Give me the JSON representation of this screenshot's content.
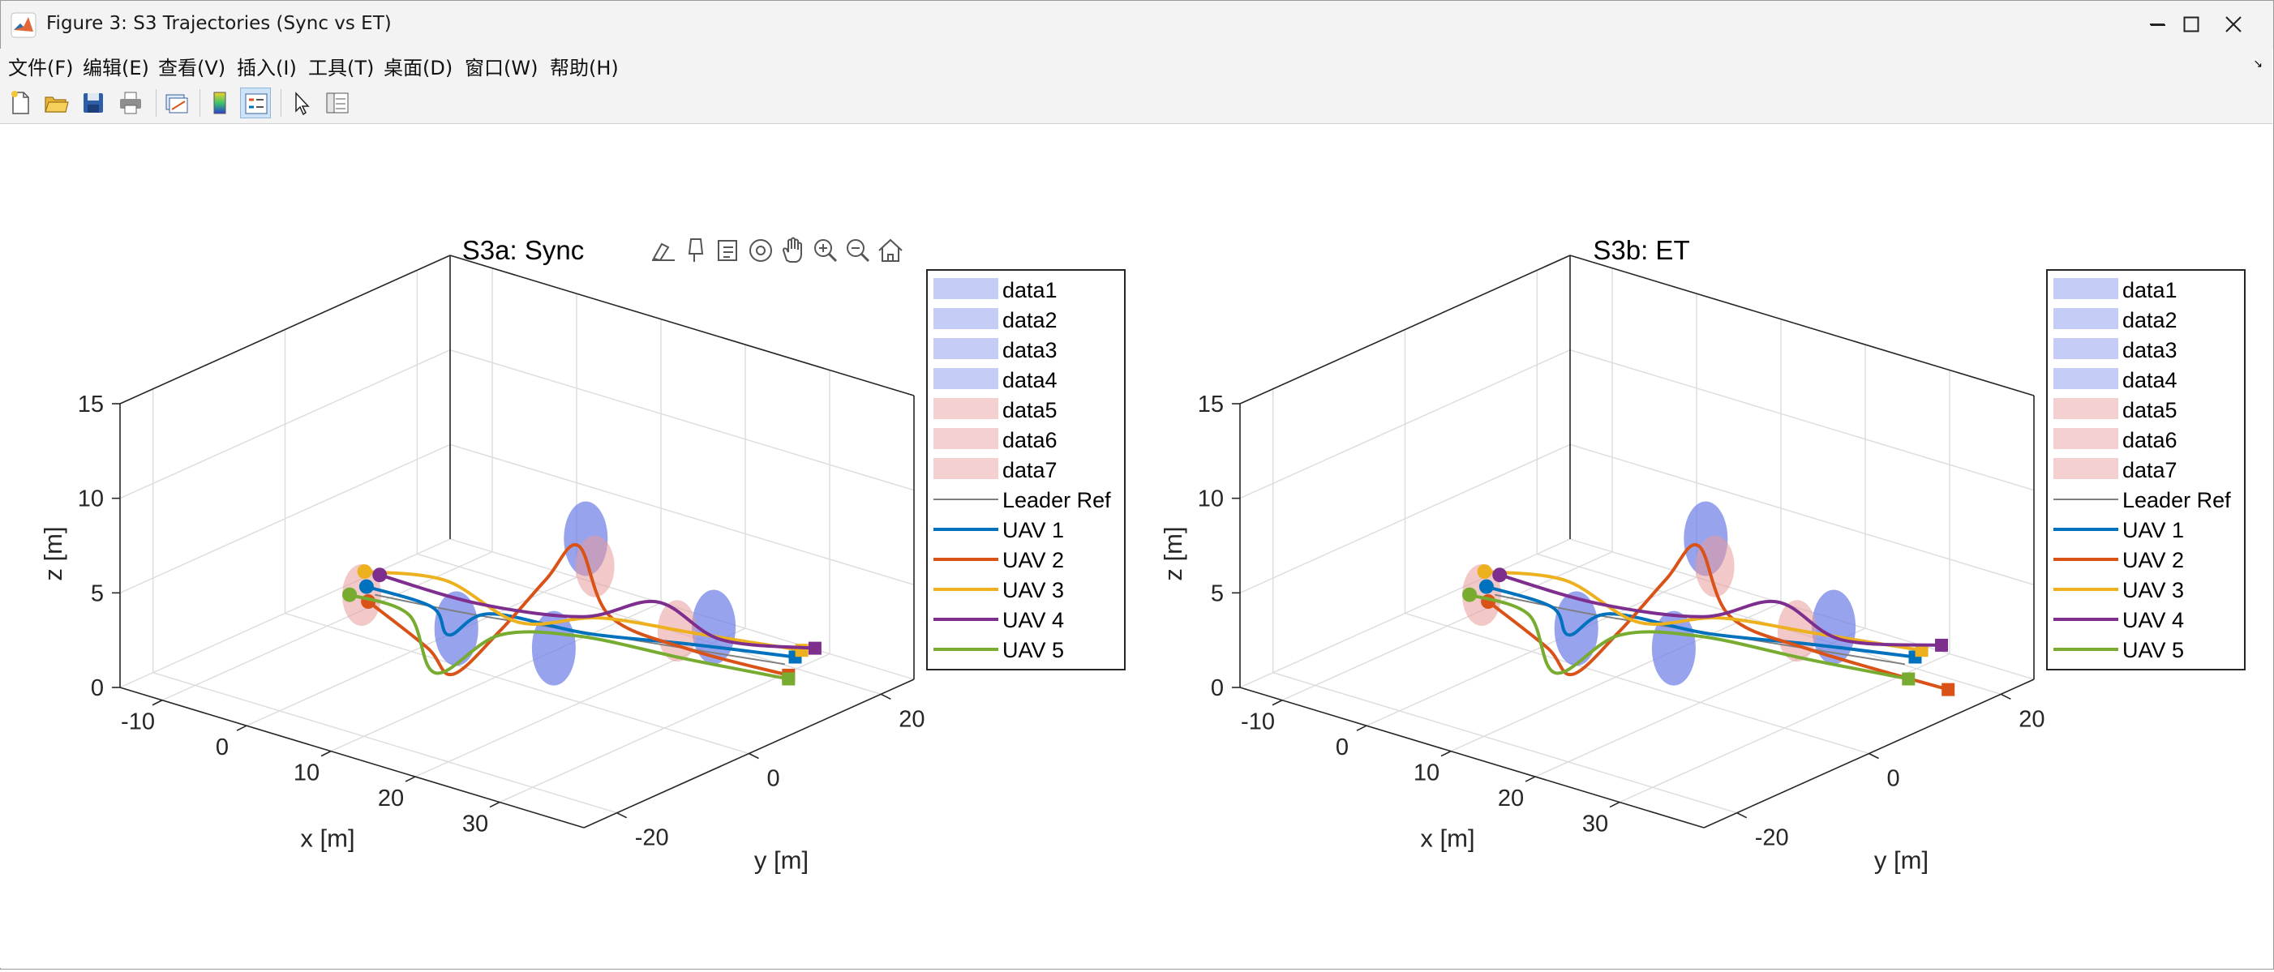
{
  "window": {
    "title": "Figure 3: S3 Trajectories (Sync vs ET)",
    "controls": [
      "minimize",
      "maximize",
      "close"
    ]
  },
  "menu": [
    "文件(F)",
    "编辑(E)",
    "查看(V)",
    "插入(I)",
    "工具(T)",
    "桌面(D)",
    "窗口(W)",
    "帮助(H)"
  ],
  "toolbar": {
    "icons": [
      "new-figure-icon",
      "open-file-icon",
      "save-icon",
      "print-icon",
      "link-plot-icon",
      "colorbar-icon",
      "legend-icon",
      "edit-plot-icon",
      "property-inspector-icon"
    ]
  },
  "axes_toolbar": {
    "icons": [
      "brush-icon",
      "data-tips-icon",
      "export-icon",
      "rotate-3d-icon",
      "pan-icon",
      "zoom-in-icon",
      "zoom-out-icon",
      "restore-view-icon"
    ]
  },
  "colors": {
    "leader_ref": "#7f7f7f",
    "uav1": "#0072BD",
    "uav2": "#D95319",
    "uav3": "#EDB120",
    "uav4": "#7E2F8E",
    "uav5": "#77AC30",
    "obstacle_blue": "#7080e8",
    "obstacle_red": "#e89a9a"
  },
  "legend": {
    "entries": [
      {
        "label": "data1",
        "kind": "patch",
        "color": "#c5ccf6"
      },
      {
        "label": "data2",
        "kind": "patch",
        "color": "#c5ccf6"
      },
      {
        "label": "data3",
        "kind": "patch",
        "color": "#c5ccf6"
      },
      {
        "label": "data4",
        "kind": "patch",
        "color": "#c5ccf6"
      },
      {
        "label": "data5",
        "kind": "patch",
        "color": "#f5d0d0"
      },
      {
        "label": "data6",
        "kind": "patch",
        "color": "#f5d0d0"
      },
      {
        "label": "data7",
        "kind": "patch",
        "color": "#f5d0d0"
      },
      {
        "label": "Leader Ref",
        "kind": "line",
        "color": "#7f7f7f"
      },
      {
        "label": "UAV 1",
        "kind": "line",
        "color": "#0072BD"
      },
      {
        "label": "UAV 2",
        "kind": "line",
        "color": "#D95319"
      },
      {
        "label": "UAV 3",
        "kind": "line",
        "color": "#EDB120"
      },
      {
        "label": "UAV 4",
        "kind": "line",
        "color": "#7E2F8E"
      },
      {
        "label": "UAV 5",
        "kind": "line",
        "color": "#77AC30"
      }
    ]
  },
  "chart_data": [
    {
      "type": "line",
      "projection": "3d",
      "title": "S3a: Sync",
      "xlabel": "x [m]",
      "ylabel": "y [m]",
      "zlabel": "z [m]",
      "xlim": [
        -15,
        40
      ],
      "ylim": [
        -25,
        25
      ],
      "zlim": [
        0,
        15
      ],
      "xticks": [
        -10,
        0,
        10,
        20,
        30
      ],
      "yticks": [
        -20,
        0,
        20
      ],
      "zticks": [
        0,
        5,
        10,
        15
      ],
      "grid": true,
      "legend_position": "right",
      "obstacles": [
        {
          "name": "data1",
          "center": [
            10,
            -6
          ],
          "color": "blue"
        },
        {
          "name": "data2",
          "center": [
            20,
            -4
          ],
          "color": "blue"
        },
        {
          "name": "data3",
          "center": [
            28,
            10
          ],
          "color": "blue"
        },
        {
          "name": "data4",
          "center": [
            5,
            20
          ],
          "color": "blue"
        },
        {
          "name": "data5",
          "center": [
            -2,
            -5
          ],
          "color": "red"
        },
        {
          "name": "data6",
          "center": [
            26,
            7
          ],
          "color": "red"
        },
        {
          "name": "data7",
          "center": [
            10,
            15
          ],
          "color": "red"
        }
      ],
      "series": [
        {
          "name": "Leader Ref",
          "points": [
            [
              -2,
              -3,
              3.2
            ],
            [
              8,
              -1,
              3.2
            ],
            [
              18,
              2,
              3.2
            ],
            [
              28,
              5,
              3.2
            ],
            [
              38,
              8,
              3.2
            ]
          ]
        },
        {
          "name": "UAV 1",
          "points": [
            [
              -3,
              -3,
              3.5
            ],
            [
              4,
              -2,
              3.2
            ],
            [
              6,
              -2,
              2
            ],
            [
              10,
              -1,
              3.5
            ],
            [
              20,
              1,
              3.5
            ],
            [
              30,
              4,
              3.8
            ],
            [
              40,
              7,
              4
            ]
          ]
        },
        {
          "name": "UAV 2",
          "points": [
            [
              -2,
              -4,
              3
            ],
            [
              5,
              -4,
              1.5
            ],
            [
              8,
              -4,
              0.5
            ],
            [
              12,
              -2,
              3
            ],
            [
              16,
              0,
              6
            ],
            [
              19,
              1,
              8
            ],
            [
              22,
              2,
              4.5
            ],
            [
              30,
              4,
              3.5
            ],
            [
              40,
              6,
              3.2
            ]
          ]
        },
        {
          "name": "UAV 3",
          "points": [
            [
              -4,
              -2,
              4
            ],
            [
              4,
              0,
              4.3
            ],
            [
              12,
              1,
              3
            ],
            [
              20,
              3,
              4
            ],
            [
              30,
              5,
              4.2
            ],
            [
              40,
              8,
              4.2
            ]
          ]
        },
        {
          "name": "UAV 4",
          "points": [
            [
              -3,
              -1,
              3.8
            ],
            [
              8,
              0,
              3.6
            ],
            [
              18,
              3,
              3.8
            ],
            [
              26,
              4,
              5.5
            ],
            [
              32,
              6,
              4
            ],
            [
              40,
              10,
              4
            ]
          ]
        },
        {
          "name": "UAV 5",
          "points": [
            [
              -5,
              -3,
              2.8
            ],
            [
              2,
              -3,
              2.7
            ],
            [
              6,
              -4,
              0.3
            ],
            [
              12,
              -2,
              2.8
            ],
            [
              20,
              0,
              3.5
            ],
            [
              30,
              3,
              3.2
            ],
            [
              40,
              6,
              3
            ]
          ]
        }
      ]
    },
    {
      "type": "line",
      "projection": "3d",
      "title": "S3b: ET",
      "xlabel": "x [m]",
      "ylabel": "y [m]",
      "zlabel": "z [m]",
      "xlim": [
        -15,
        40
      ],
      "ylim": [
        -25,
        25
      ],
      "zlim": [
        0,
        15
      ],
      "xticks": [
        -10,
        0,
        10,
        20,
        30
      ],
      "yticks": [
        -20,
        0,
        20
      ],
      "zticks": [
        0,
        5,
        10,
        15
      ],
      "grid": true,
      "legend_position": "right",
      "obstacles": [
        {
          "name": "data1",
          "center": [
            10,
            -6
          ],
          "color": "blue"
        },
        {
          "name": "data2",
          "center": [
            20,
            -4
          ],
          "color": "blue"
        },
        {
          "name": "data3",
          "center": [
            28,
            10
          ],
          "color": "blue"
        },
        {
          "name": "data4",
          "center": [
            5,
            20
          ],
          "color": "blue"
        },
        {
          "name": "data5",
          "center": [
            -2,
            -5
          ],
          "color": "red"
        },
        {
          "name": "data6",
          "center": [
            26,
            7
          ],
          "color": "red"
        },
        {
          "name": "data7",
          "center": [
            10,
            15
          ],
          "color": "red"
        }
      ],
      "series": [
        {
          "name": "Leader Ref",
          "points": [
            [
              -2,
              -3,
              3.2
            ],
            [
              8,
              -1,
              3.2
            ],
            [
              18,
              2,
              3.2
            ],
            [
              28,
              5,
              3.2
            ],
            [
              38,
              8,
              3.2
            ]
          ]
        },
        {
          "name": "UAV 1",
          "points": [
            [
              -3,
              -3,
              3.5
            ],
            [
              4,
              -2,
              3.2
            ],
            [
              6,
              -2,
              2
            ],
            [
              10,
              -1,
              3.5
            ],
            [
              20,
              1,
              3.5
            ],
            [
              30,
              4,
              3.8
            ],
            [
              40,
              7,
              4
            ]
          ]
        },
        {
          "name": "UAV 2",
          "points": [
            [
              -2,
              -4,
              3
            ],
            [
              5,
              -4,
              1.5
            ],
            [
              8,
              -4,
              0.5
            ],
            [
              12,
              -2,
              3
            ],
            [
              16,
              0,
              6
            ],
            [
              19,
              1,
              8
            ],
            [
              22,
              2,
              4.5
            ],
            [
              30,
              4,
              3.5
            ],
            [
              40,
              12,
              1.5
            ]
          ]
        },
        {
          "name": "UAV 3",
          "points": [
            [
              -4,
              -2,
              4
            ],
            [
              4,
              0,
              4.3
            ],
            [
              12,
              1,
              3
            ],
            [
              20,
              3,
              4
            ],
            [
              30,
              5,
              4.2
            ],
            [
              40,
              8,
              4.2
            ]
          ]
        },
        {
          "name": "UAV 4",
          "points": [
            [
              -3,
              -1,
              3.8
            ],
            [
              8,
              0,
              3.6
            ],
            [
              18,
              3,
              3.8
            ],
            [
              26,
              4,
              5.5
            ],
            [
              32,
              6,
              4
            ],
            [
              40,
              11,
              4
            ]
          ]
        },
        {
          "name": "UAV 5",
          "points": [
            [
              -5,
              -3,
              2.8
            ],
            [
              2,
              -3,
              2.7
            ],
            [
              6,
              -4,
              0.3
            ],
            [
              12,
              -2,
              2.8
            ],
            [
              20,
              0,
              3.5
            ],
            [
              30,
              3,
              3.2
            ],
            [
              40,
              6,
              3
            ]
          ]
        }
      ]
    }
  ]
}
